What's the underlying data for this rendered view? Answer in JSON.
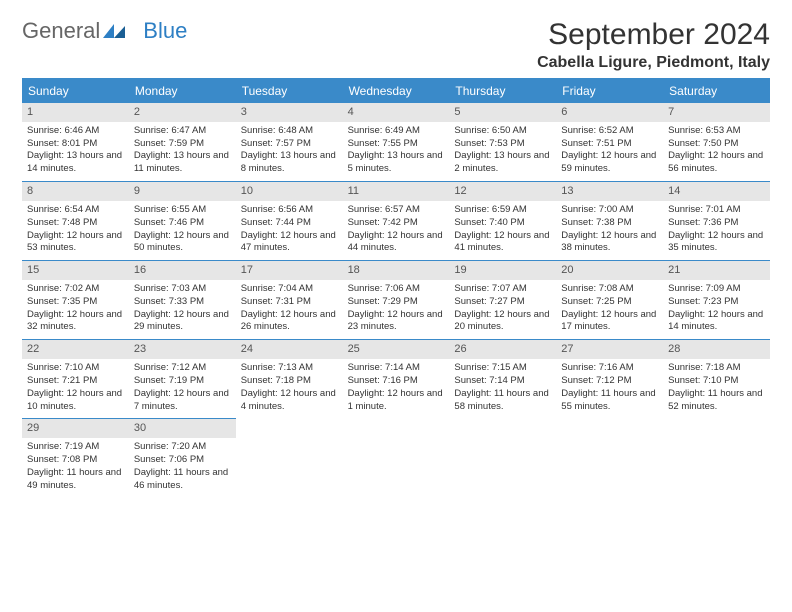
{
  "logo": {
    "general": "General",
    "blue": "Blue"
  },
  "title": "September 2024",
  "location": "Cabella Ligure, Piedmont, Italy",
  "colors": {
    "header_bg": "#3a8ac9",
    "header_text": "#ffffff",
    "daynum_bg": "#e6e6e6",
    "text": "#333333",
    "logo_blue": "#2d7fc4",
    "border": "#3a8ac9",
    "background": "#ffffff"
  },
  "fonts": {
    "title_size": 30,
    "location_size": 16,
    "dayheader_size": 12,
    "daynum_size": 11,
    "body_size": 9.5
  },
  "day_headers": [
    "Sunday",
    "Monday",
    "Tuesday",
    "Wednesday",
    "Thursday",
    "Friday",
    "Saturday"
  ],
  "weeks": [
    [
      {
        "num": "1",
        "sunrise": "Sunrise: 6:46 AM",
        "sunset": "Sunset: 8:01 PM",
        "daylight": "Daylight: 13 hours and 14 minutes."
      },
      {
        "num": "2",
        "sunrise": "Sunrise: 6:47 AM",
        "sunset": "Sunset: 7:59 PM",
        "daylight": "Daylight: 13 hours and 11 minutes."
      },
      {
        "num": "3",
        "sunrise": "Sunrise: 6:48 AM",
        "sunset": "Sunset: 7:57 PM",
        "daylight": "Daylight: 13 hours and 8 minutes."
      },
      {
        "num": "4",
        "sunrise": "Sunrise: 6:49 AM",
        "sunset": "Sunset: 7:55 PM",
        "daylight": "Daylight: 13 hours and 5 minutes."
      },
      {
        "num": "5",
        "sunrise": "Sunrise: 6:50 AM",
        "sunset": "Sunset: 7:53 PM",
        "daylight": "Daylight: 13 hours and 2 minutes."
      },
      {
        "num": "6",
        "sunrise": "Sunrise: 6:52 AM",
        "sunset": "Sunset: 7:51 PM",
        "daylight": "Daylight: 12 hours and 59 minutes."
      },
      {
        "num": "7",
        "sunrise": "Sunrise: 6:53 AM",
        "sunset": "Sunset: 7:50 PM",
        "daylight": "Daylight: 12 hours and 56 minutes."
      }
    ],
    [
      {
        "num": "8",
        "sunrise": "Sunrise: 6:54 AM",
        "sunset": "Sunset: 7:48 PM",
        "daylight": "Daylight: 12 hours and 53 minutes."
      },
      {
        "num": "9",
        "sunrise": "Sunrise: 6:55 AM",
        "sunset": "Sunset: 7:46 PM",
        "daylight": "Daylight: 12 hours and 50 minutes."
      },
      {
        "num": "10",
        "sunrise": "Sunrise: 6:56 AM",
        "sunset": "Sunset: 7:44 PM",
        "daylight": "Daylight: 12 hours and 47 minutes."
      },
      {
        "num": "11",
        "sunrise": "Sunrise: 6:57 AM",
        "sunset": "Sunset: 7:42 PM",
        "daylight": "Daylight: 12 hours and 44 minutes."
      },
      {
        "num": "12",
        "sunrise": "Sunrise: 6:59 AM",
        "sunset": "Sunset: 7:40 PM",
        "daylight": "Daylight: 12 hours and 41 minutes."
      },
      {
        "num": "13",
        "sunrise": "Sunrise: 7:00 AM",
        "sunset": "Sunset: 7:38 PM",
        "daylight": "Daylight: 12 hours and 38 minutes."
      },
      {
        "num": "14",
        "sunrise": "Sunrise: 7:01 AM",
        "sunset": "Sunset: 7:36 PM",
        "daylight": "Daylight: 12 hours and 35 minutes."
      }
    ],
    [
      {
        "num": "15",
        "sunrise": "Sunrise: 7:02 AM",
        "sunset": "Sunset: 7:35 PM",
        "daylight": "Daylight: 12 hours and 32 minutes."
      },
      {
        "num": "16",
        "sunrise": "Sunrise: 7:03 AM",
        "sunset": "Sunset: 7:33 PM",
        "daylight": "Daylight: 12 hours and 29 minutes."
      },
      {
        "num": "17",
        "sunrise": "Sunrise: 7:04 AM",
        "sunset": "Sunset: 7:31 PM",
        "daylight": "Daylight: 12 hours and 26 minutes."
      },
      {
        "num": "18",
        "sunrise": "Sunrise: 7:06 AM",
        "sunset": "Sunset: 7:29 PM",
        "daylight": "Daylight: 12 hours and 23 minutes."
      },
      {
        "num": "19",
        "sunrise": "Sunrise: 7:07 AM",
        "sunset": "Sunset: 7:27 PM",
        "daylight": "Daylight: 12 hours and 20 minutes."
      },
      {
        "num": "20",
        "sunrise": "Sunrise: 7:08 AM",
        "sunset": "Sunset: 7:25 PM",
        "daylight": "Daylight: 12 hours and 17 minutes."
      },
      {
        "num": "21",
        "sunrise": "Sunrise: 7:09 AM",
        "sunset": "Sunset: 7:23 PM",
        "daylight": "Daylight: 12 hours and 14 minutes."
      }
    ],
    [
      {
        "num": "22",
        "sunrise": "Sunrise: 7:10 AM",
        "sunset": "Sunset: 7:21 PM",
        "daylight": "Daylight: 12 hours and 10 minutes."
      },
      {
        "num": "23",
        "sunrise": "Sunrise: 7:12 AM",
        "sunset": "Sunset: 7:19 PM",
        "daylight": "Daylight: 12 hours and 7 minutes."
      },
      {
        "num": "24",
        "sunrise": "Sunrise: 7:13 AM",
        "sunset": "Sunset: 7:18 PM",
        "daylight": "Daylight: 12 hours and 4 minutes."
      },
      {
        "num": "25",
        "sunrise": "Sunrise: 7:14 AM",
        "sunset": "Sunset: 7:16 PM",
        "daylight": "Daylight: 12 hours and 1 minute."
      },
      {
        "num": "26",
        "sunrise": "Sunrise: 7:15 AM",
        "sunset": "Sunset: 7:14 PM",
        "daylight": "Daylight: 11 hours and 58 minutes."
      },
      {
        "num": "27",
        "sunrise": "Sunrise: 7:16 AM",
        "sunset": "Sunset: 7:12 PM",
        "daylight": "Daylight: 11 hours and 55 minutes."
      },
      {
        "num": "28",
        "sunrise": "Sunrise: 7:18 AM",
        "sunset": "Sunset: 7:10 PM",
        "daylight": "Daylight: 11 hours and 52 minutes."
      }
    ],
    [
      {
        "num": "29",
        "sunrise": "Sunrise: 7:19 AM",
        "sunset": "Sunset: 7:08 PM",
        "daylight": "Daylight: 11 hours and 49 minutes."
      },
      {
        "num": "30",
        "sunrise": "Sunrise: 7:20 AM",
        "sunset": "Sunset: 7:06 PM",
        "daylight": "Daylight: 11 hours and 46 minutes."
      },
      null,
      null,
      null,
      null,
      null
    ]
  ]
}
